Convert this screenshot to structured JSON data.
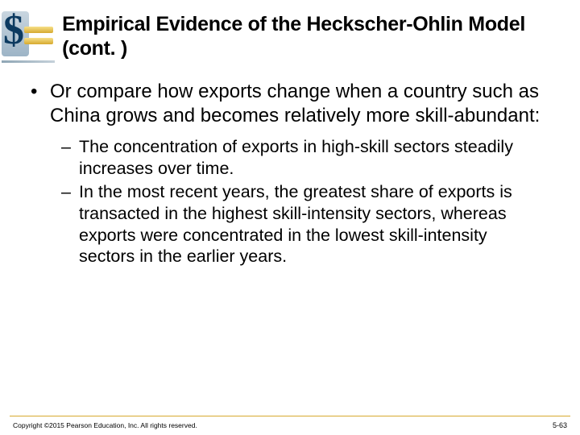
{
  "title": "Empirical Evidence of the Heckscher-Ohlin Model (cont. )",
  "main_bullet": {
    "text": "Or compare how exports change when a country such as China grows and becomes relatively more skill-abundant:"
  },
  "sub_bullets": [
    "The concentration of exports in high-skill sectors steadily increases over time.",
    "In the most recent years, the greatest share of exports is transacted in the highest skill-intensity sectors, whereas exports were concentrated in the lowest skill-intensity sectors in the earlier years."
  ],
  "footer": {
    "copyright": "Copyright ©2015 Pearson Education, Inc. All rights reserved.",
    "page": "5-63"
  },
  "colors": {
    "accent_gold": "#d6a92e",
    "logo_blue": "#0c3a60"
  }
}
